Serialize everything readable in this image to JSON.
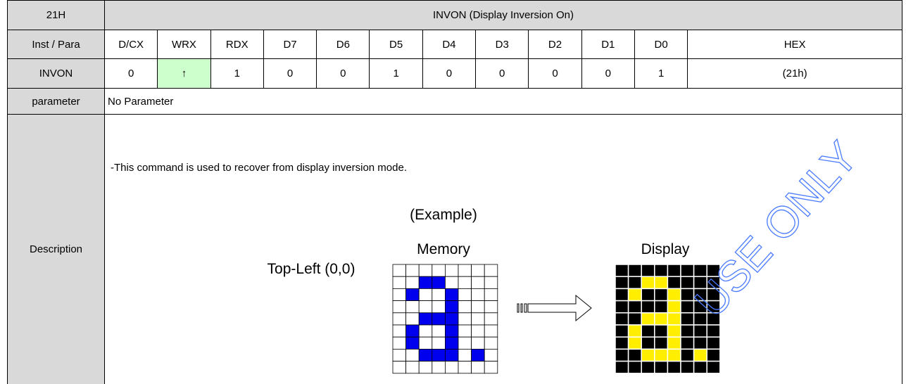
{
  "header": {
    "code": "21H",
    "title": "INVON (Display Inversion On)"
  },
  "columns": [
    "Inst / Para",
    "D/CX",
    "WRX",
    "RDX",
    "D7",
    "D6",
    "D5",
    "D4",
    "D3",
    "D2",
    "D1",
    "D0",
    "HEX"
  ],
  "instruction": [
    "INVON",
    "0",
    "↑",
    "1",
    "0",
    "0",
    "1",
    "0",
    "0",
    "0",
    "0",
    "1",
    "(21h)"
  ],
  "parameter": {
    "label": "parameter",
    "text": "No Parameter"
  },
  "description": {
    "label": "Description",
    "text": "-This command is used to recover from display inversion mode.",
    "example": {
      "title": "(Example)",
      "memory": "Memory",
      "display": "Display",
      "origin": "Top-Left (0,0)"
    }
  },
  "watermark": "USE ONLY"
}
